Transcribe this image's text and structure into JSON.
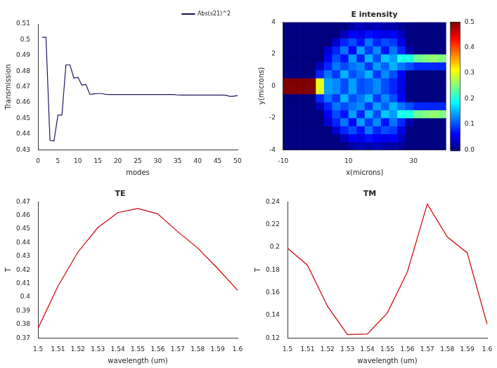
{
  "chart_data": [
    {
      "type": "line",
      "x_label": "modes",
      "y_label": "Transmission",
      "legend": "top-right",
      "grid": false,
      "x": [
        1,
        2,
        3,
        4,
        5,
        6,
        7,
        8,
        9,
        10,
        11,
        12,
        13,
        14,
        15,
        16,
        17,
        18,
        19,
        20,
        21,
        22,
        23,
        24,
        25,
        26,
        27,
        28,
        29,
        30,
        31,
        32,
        33,
        34,
        35,
        36,
        37,
        38,
        39,
        40,
        41,
        42,
        43,
        44,
        45,
        46,
        47,
        48,
        49,
        50
      ],
      "series": [
        {
          "name": "Abs(s21)^2",
          "color": "#1a1a5e",
          "marker": "none",
          "line_style": "solid",
          "values": [
            0.5015,
            0.5015,
            0.436,
            0.4355,
            0.452,
            0.452,
            0.484,
            0.484,
            0.4755,
            0.476,
            0.471,
            0.4715,
            0.4652,
            0.4655,
            0.4657,
            0.4657,
            0.4652,
            0.4651,
            0.4651,
            0.4651,
            0.4651,
            0.4651,
            0.4651,
            0.4651,
            0.4651,
            0.4651,
            0.4651,
            0.4651,
            0.4651,
            0.4651,
            0.4651,
            0.4651,
            0.4651,
            0.4651,
            0.4648,
            0.4647,
            0.4647,
            0.4647,
            0.4647,
            0.4647,
            0.4647,
            0.4647,
            0.4647,
            0.4647,
            0.4647,
            0.4647,
            0.4646,
            0.464,
            0.464,
            0.4645
          ]
        }
      ],
      "xlim": [
        0,
        50
      ],
      "xticks": [
        0,
        5,
        10,
        15,
        20,
        25,
        30,
        35,
        40,
        45,
        50
      ],
      "ylim": [
        0.43,
        0.51
      ],
      "yticks": [
        0.43,
        0.44,
        0.45,
        0.46,
        0.47,
        0.48,
        0.49,
        0.5,
        0.51
      ]
    },
    {
      "type": "heatmap",
      "title": "E intensity",
      "x_label": "x(microns)",
      "y_label": "y(microns)",
      "xlim": [
        -10,
        40
      ],
      "xticks": [
        -10,
        10,
        30
      ],
      "ylim": [
        -4,
        4
      ],
      "yticks": [
        -4,
        -2,
        0,
        2,
        4
      ],
      "x_bins": [
        -10,
        -7.5,
        -5,
        -2.5,
        0,
        2.5,
        5,
        7.5,
        10,
        12.5,
        15,
        17.5,
        20,
        22.5,
        25,
        27.5,
        30,
        32.5,
        35,
        37.5,
        40
      ],
      "y_bins": [
        -4,
        -3.5,
        -3,
        -2.5,
        -2,
        -1.5,
        -1,
        -0.5,
        0,
        0.5,
        1,
        1.5,
        2,
        2.5,
        3,
        3.5,
        4
      ],
      "z": [
        [
          0,
          0,
          0,
          0,
          0,
          0,
          0,
          0,
          0.02,
          0.03,
          0.02,
          0.03,
          0.02,
          0.02,
          0.01,
          0,
          0,
          0,
          0,
          0
        ],
        [
          0,
          0,
          0,
          0,
          0,
          0,
          0,
          0.03,
          0.06,
          0.05,
          0.07,
          0.06,
          0.05,
          0.06,
          0.03,
          0,
          0,
          0,
          0,
          0
        ],
        [
          0,
          0,
          0,
          0,
          0,
          0,
          0.04,
          0.08,
          0.1,
          0.07,
          0.12,
          0.08,
          0.1,
          0.09,
          0.05,
          0,
          0,
          0,
          0,
          0
        ],
        [
          0,
          0,
          0,
          0,
          0,
          0.04,
          0.08,
          0.12,
          0.06,
          0.14,
          0.09,
          0.13,
          0.07,
          0.12,
          0.08,
          0.02,
          0,
          0,
          0,
          0
        ],
        [
          0,
          0,
          0,
          0,
          0,
          0.06,
          0.1,
          0.07,
          0.14,
          0.08,
          0.15,
          0.1,
          0.16,
          0.14,
          0.2,
          0.2,
          0.24,
          0.25,
          0.26,
          0.25
        ],
        [
          0,
          0,
          0,
          0,
          0.03,
          0.08,
          0.12,
          0.1,
          0.12,
          0.13,
          0.09,
          0.14,
          0.11,
          0.15,
          0.12,
          0.1,
          0.08,
          0.08,
          0.08,
          0.08
        ],
        [
          0,
          0,
          0,
          0,
          0.08,
          0.12,
          0.09,
          0.15,
          0.1,
          0.12,
          0.15,
          0.09,
          0.13,
          0.1,
          0.06,
          0,
          0,
          0,
          0,
          0
        ],
        [
          0.5,
          0.5,
          0.5,
          0.5,
          0.3,
          0.14,
          0.13,
          0.1,
          0.14,
          0.1,
          0.11,
          0.13,
          0.1,
          0.08,
          0.05,
          0,
          0,
          0,
          0,
          0
        ],
        [
          0.5,
          0.5,
          0.5,
          0.5,
          0.3,
          0.14,
          0.13,
          0.1,
          0.14,
          0.1,
          0.11,
          0.13,
          0.1,
          0.08,
          0.05,
          0,
          0,
          0,
          0,
          0
        ],
        [
          0,
          0,
          0,
          0,
          0.08,
          0.12,
          0.09,
          0.15,
          0.1,
          0.12,
          0.15,
          0.09,
          0.13,
          0.1,
          0.06,
          0,
          0,
          0,
          0,
          0
        ],
        [
          0,
          0,
          0,
          0,
          0.03,
          0.08,
          0.12,
          0.1,
          0.12,
          0.13,
          0.09,
          0.14,
          0.11,
          0.15,
          0.12,
          0.1,
          0.08,
          0.08,
          0.08,
          0.08
        ],
        [
          0,
          0,
          0,
          0,
          0,
          0.06,
          0.1,
          0.07,
          0.14,
          0.08,
          0.15,
          0.1,
          0.16,
          0.14,
          0.2,
          0.2,
          0.24,
          0.25,
          0.26,
          0.25
        ],
        [
          0,
          0,
          0,
          0,
          0,
          0.04,
          0.08,
          0.12,
          0.06,
          0.14,
          0.09,
          0.13,
          0.07,
          0.12,
          0.08,
          0.02,
          0,
          0,
          0,
          0
        ],
        [
          0,
          0,
          0,
          0,
          0,
          0,
          0.04,
          0.08,
          0.1,
          0.07,
          0.12,
          0.08,
          0.1,
          0.09,
          0.05,
          0,
          0,
          0,
          0,
          0
        ],
        [
          0,
          0,
          0,
          0,
          0,
          0,
          0,
          0.03,
          0.06,
          0.05,
          0.07,
          0.06,
          0.05,
          0.06,
          0.03,
          0,
          0,
          0,
          0,
          0
        ],
        [
          0,
          0,
          0,
          0,
          0,
          0,
          0,
          0,
          0.02,
          0.03,
          0.02,
          0.03,
          0.02,
          0.02,
          0.01,
          0,
          0,
          0,
          0,
          0
        ]
      ],
      "colorbar": {
        "range": [
          0,
          0.5
        ],
        "ticks": [
          {
            "value": 0,
            "label": "0.0"
          },
          0.1,
          0.2,
          0.3,
          0.4,
          0.5
        ]
      }
    },
    {
      "type": "line",
      "title": "TE",
      "x_label": "wavelength (um)",
      "y_label": "T",
      "grid": false,
      "x": [
        1.5,
        1.51,
        1.52,
        1.53,
        1.54,
        1.55,
        1.56,
        1.57,
        1.58,
        1.59,
        1.6
      ],
      "series": [
        {
          "color": "#cc0000",
          "marker": "none",
          "line_style": "solid",
          "values": [
            0.377,
            0.408,
            0.433,
            0.451,
            0.462,
            0.465,
            0.461,
            0.448,
            0.436,
            0.421,
            0.405
          ]
        }
      ],
      "xlim": [
        1.5,
        1.6
      ],
      "xticks": [
        1.5,
        1.51,
        1.52,
        1.53,
        1.54,
        1.55,
        1.56,
        1.57,
        1.58,
        1.59,
        1.6
      ],
      "ylim": [
        0.37,
        0.47
      ],
      "yticks": [
        0.37,
        0.38,
        0.39,
        0.4,
        0.41,
        0.42,
        0.43,
        0.44,
        0.45,
        0.46,
        0.47
      ]
    },
    {
      "type": "line",
      "title": "TM",
      "x_label": "wavelength (um)",
      "y_label": "T",
      "grid": false,
      "x": [
        1.5,
        1.51,
        1.52,
        1.53,
        1.54,
        1.55,
        1.56,
        1.57,
        1.58,
        1.59,
        1.6
      ],
      "series": [
        {
          "color": "#cc0000",
          "marker": "none",
          "line_style": "solid",
          "values": [
            0.199,
            0.184,
            0.148,
            0.123,
            0.1235,
            0.142,
            0.178,
            0.238,
            0.209,
            0.195,
            0.132
          ]
        }
      ],
      "xlim": [
        1.5,
        1.6
      ],
      "xticks": [
        1.5,
        1.51,
        1.52,
        1.53,
        1.54,
        1.55,
        1.56,
        1.57,
        1.58,
        1.59,
        1.6
      ],
      "ylim": [
        0.12,
        0.24
      ],
      "yticks": [
        0.12,
        0.14,
        0.16,
        0.18,
        0.2,
        0.22,
        0.24
      ]
    }
  ]
}
